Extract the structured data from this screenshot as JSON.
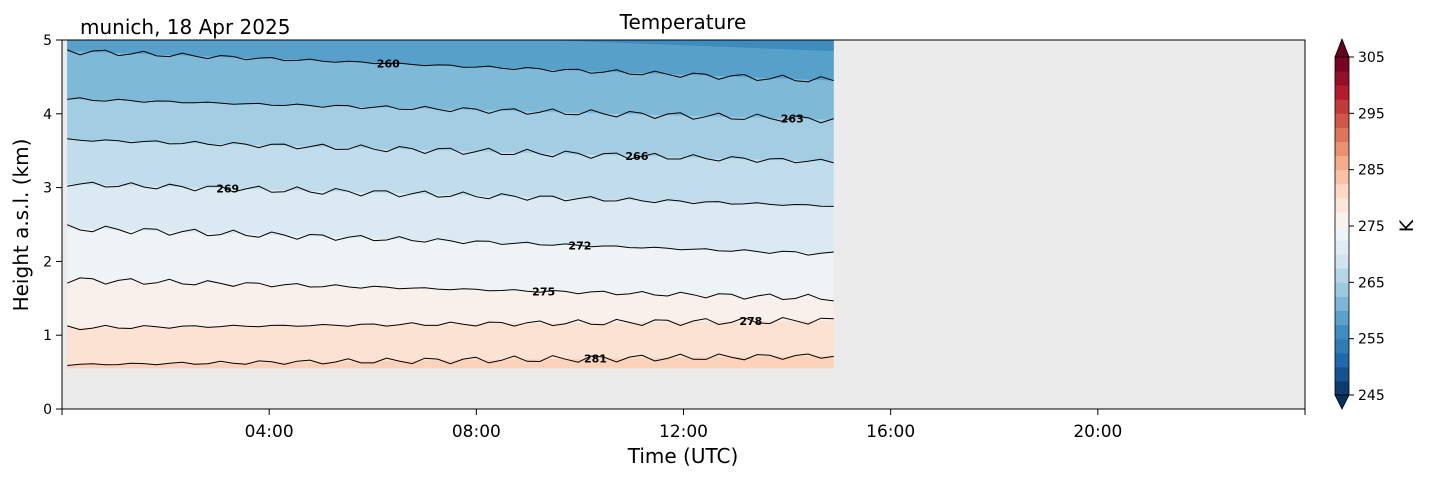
{
  "chart_data": {
    "type": "heatmap",
    "title": "Temperature",
    "subtitle": "munich, 18 Apr 2025",
    "xlabel": "Time (UTC)",
    "ylabel": "Height a.s.l. (km)",
    "xlim_hours": [
      0,
      24
    ],
    "ylim": [
      0,
      5
    ],
    "x_ticks": [
      {
        "hour": 0,
        "label": ""
      },
      {
        "hour": 4,
        "label": "04:00"
      },
      {
        "hour": 8,
        "label": "08:00"
      },
      {
        "hour": 12,
        "label": "12:00"
      },
      {
        "hour": 16,
        "label": "16:00"
      },
      {
        "hour": 20,
        "label": "20:00"
      },
      {
        "hour": 24,
        "label": ""
      }
    ],
    "y_ticks": [
      {
        "value": 0,
        "label": "0"
      },
      {
        "value": 1,
        "label": "1"
      },
      {
        "value": 2,
        "label": "2"
      },
      {
        "value": 3,
        "label": "3"
      },
      {
        "value": 4,
        "label": "4"
      },
      {
        "value": 5,
        "label": "5"
      }
    ],
    "data_extent": {
      "start_hour": 0.1,
      "end_hour": 14.9,
      "min_height_km": 0.55,
      "max_height_km": 5
    },
    "missing_color": "#ebebeb",
    "colorbar": {
      "label": "K",
      "min": 245,
      "max": 305,
      "step": 2.5,
      "ticks": [
        "245",
        "255",
        "265",
        "275",
        "285",
        "295",
        "305"
      ],
      "extend": "both",
      "colormap": "RdBu_r"
    },
    "contour_levels": [
      {
        "level": 260,
        "label": "260",
        "height_start_km": 4.85,
        "height_end_km": 4.45,
        "label_hour": 6.3
      },
      {
        "level": 263,
        "label": "263",
        "height_start_km": 4.2,
        "height_end_km": 3.92,
        "label_hour": 14.1
      },
      {
        "level": 266,
        "label": "266",
        "height_start_km": 3.65,
        "height_end_km": 3.35,
        "label_hour": 11.1
      },
      {
        "level": 269,
        "label": "269",
        "height_start_km": 3.05,
        "height_end_km": 2.75,
        "label_hour": 3.2
      },
      {
        "level": 272,
        "label": "272",
        "height_start_km": 2.45,
        "height_end_km": 2.1,
        "label_hour": 10.0
      },
      {
        "level": 275,
        "label": "275",
        "height_start_km": 1.75,
        "height_end_km": 1.5,
        "label_hour": 9.3
      },
      {
        "level": 278,
        "label": "278",
        "height_start_km": 1.1,
        "height_end_km": 1.2,
        "label_hour": 13.3
      },
      {
        "level": 281,
        "label": "281",
        "height_start_km": 0.6,
        "height_end_km": 0.72,
        "label_hour": 10.3
      }
    ]
  }
}
